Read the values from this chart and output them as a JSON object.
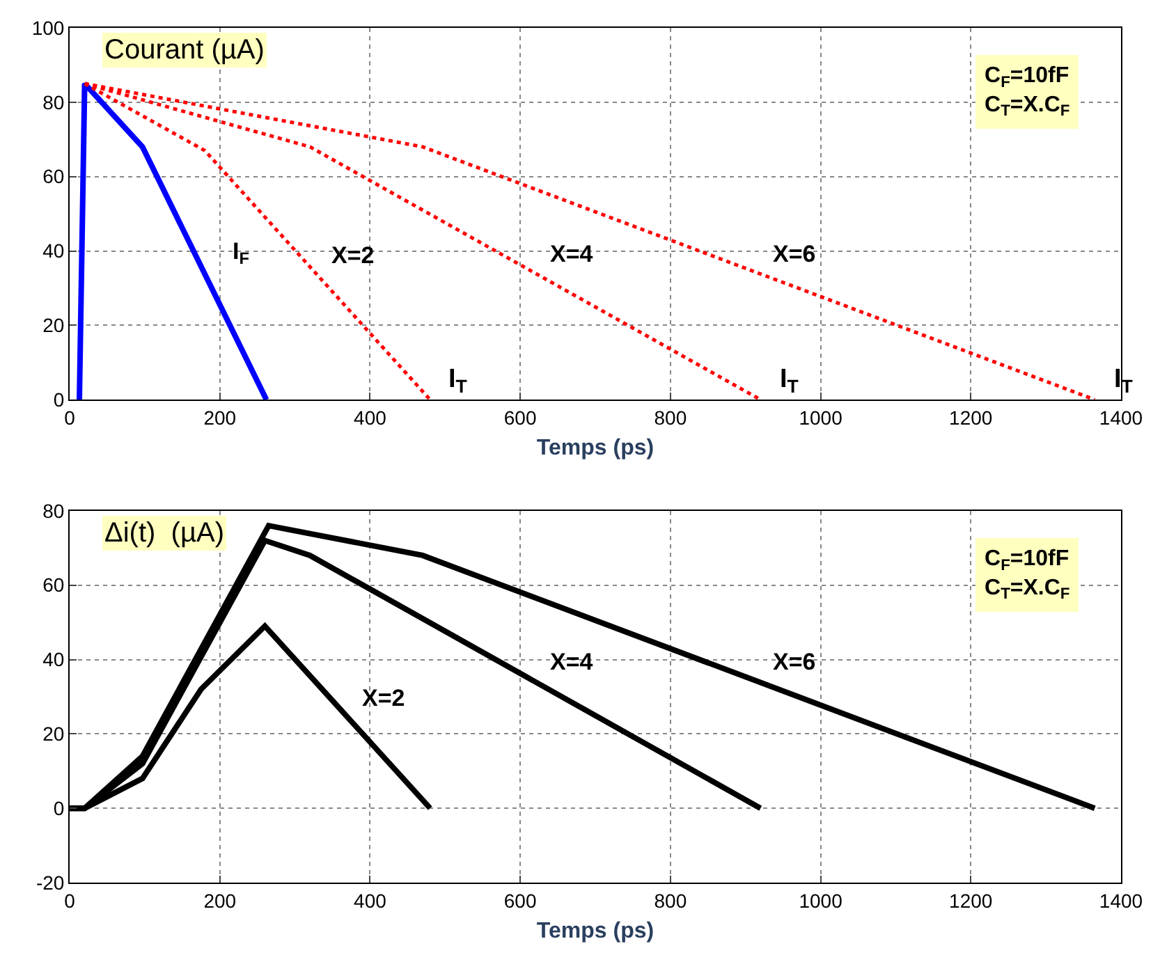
{
  "chart_data": [
    {
      "type": "line",
      "title": "Courant (µA)",
      "xlabel": "Temps (ps)",
      "xlim": [
        0,
        1400
      ],
      "ylim": [
        0,
        100
      ],
      "xticks": [
        0,
        200,
        400,
        600,
        800,
        1000,
        1200,
        1400
      ],
      "yticks": [
        0,
        20,
        40,
        60,
        80,
        100
      ],
      "grid": true,
      "marker": "none",
      "series": [
        {
          "name": "I$_{F}$",
          "color": "#0000ff",
          "line_style": "solid",
          "x": [
            13,
            20,
            97,
            262
          ],
          "values": [
            0,
            85,
            68,
            0
          ]
        },
        {
          "name": "X=2",
          "color": "#ff0000",
          "line_style": "dotted",
          "x": [
            20,
            180,
            480
          ],
          "values": [
            85,
            67,
            0
          ]
        },
        {
          "name": "X=4",
          "color": "#ff0000",
          "line_style": "dotted",
          "x": [
            20,
            320,
            920
          ],
          "values": [
            85,
            68,
            0
          ]
        },
        {
          "name": "X=6",
          "color": "#ff0000",
          "line_style": "dotted",
          "x": [
            20,
            470,
            1365
          ],
          "values": [
            85,
            68,
            0
          ]
        }
      ],
      "annotations": [
        "C$_{F}$=10fF\nC$_{T}$=X.C$_{F}$",
        "I$_{T}$",
        "I$_{T}$",
        "I$_{T}$"
      ]
    },
    {
      "type": "line",
      "title": "Δi(t)  (µA)",
      "xlabel": "Temps (ps)",
      "xlim": [
        0,
        1400
      ],
      "ylim": [
        -20,
        80
      ],
      "xticks": [
        0,
        200,
        400,
        600,
        800,
        1000,
        1200,
        1400
      ],
      "yticks": [
        -20,
        0,
        20,
        40,
        60,
        80
      ],
      "grid": true,
      "marker": "none",
      "series": [
        {
          "name": "X=2",
          "color": "#000000",
          "line_style": "solid",
          "x": [
            0,
            20,
            97,
            175,
            260,
            480
          ],
          "values": [
            0,
            0,
            8,
            32,
            49,
            0
          ]
        },
        {
          "name": "X=4",
          "color": "#000000",
          "line_style": "solid",
          "x": [
            0,
            20,
            97,
            260,
            320,
            920
          ],
          "values": [
            0,
            0,
            12,
            72,
            68,
            0
          ]
        },
        {
          "name": "X=6",
          "color": "#000000",
          "line_style": "solid",
          "x": [
            0,
            20,
            97,
            265,
            470,
            1365
          ],
          "values": [
            0,
            0,
            14,
            76,
            68,
            0
          ]
        }
      ],
      "annotations": [
        "C$_{F}$=10fF\nC$_{T}$=X.C$_{F}$"
      ]
    }
  ]
}
